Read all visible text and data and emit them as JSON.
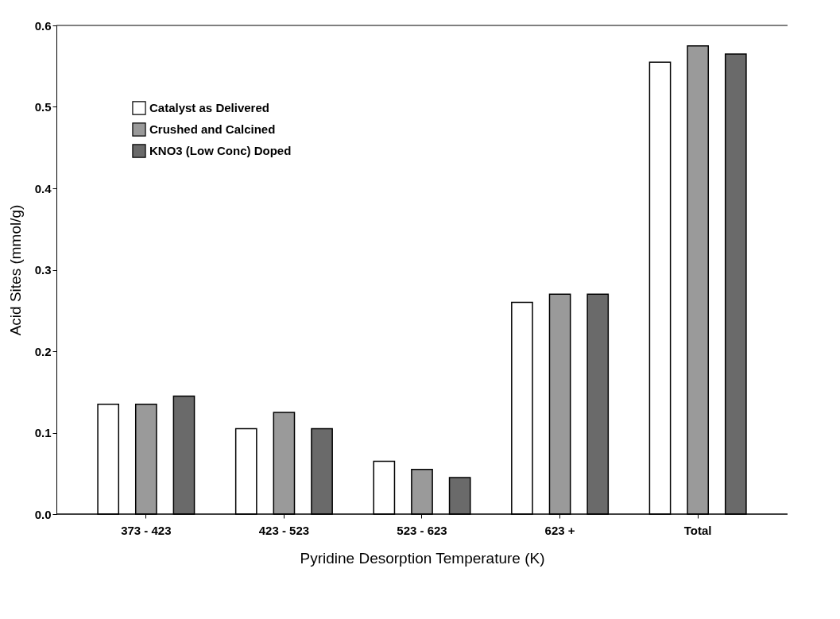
{
  "chart_data": {
    "type": "bar",
    "xlabel": "Pyridine Desorption Temperature (K)",
    "ylabel": "Acid Sites (mmol/g)",
    "categories": [
      "373 - 423",
      "423 - 523",
      "523 - 623",
      "623 +",
      "Total"
    ],
    "series": [
      {
        "name": "Catalyst as Delivered",
        "color": "#ffffff",
        "values": [
          0.135,
          0.105,
          0.065,
          0.26,
          0.555
        ]
      },
      {
        "name": "Crushed and Calcined",
        "color": "#9a9a9a",
        "values": [
          0.135,
          0.125,
          0.055,
          0.27,
          0.575
        ]
      },
      {
        "name": "KNO3 (Low Conc) Doped",
        "color": "#6a6a6a",
        "values": [
          0.145,
          0.105,
          0.045,
          0.27,
          0.565
        ]
      }
    ],
    "ylim": [
      0,
      0.6
    ],
    "yticks": [
      {
        "value": 0,
        "label": "0.0"
      },
      0.1,
      0.2,
      0.3,
      0.4,
      0.5,
      0.6
    ],
    "grid": false,
    "legend": "top left"
  }
}
